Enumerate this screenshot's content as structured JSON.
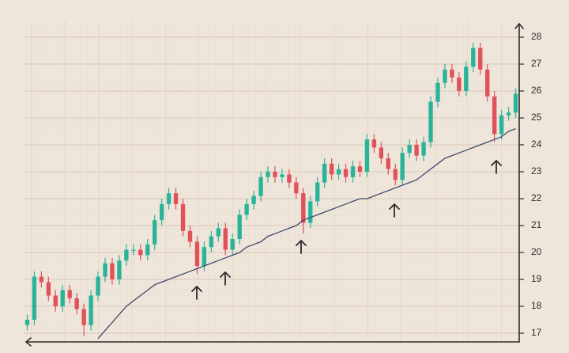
{
  "chart_data": {
    "type": "candlestick",
    "categories": [
      null,
      null,
      null,
      null,
      null,
      null,
      null,
      null,
      null,
      null,
      null,
      null,
      null,
      null,
      null,
      null,
      null,
      null,
      null,
      null,
      null,
      null,
      null,
      null,
      null,
      null,
      null,
      null,
      null,
      null,
      null,
      null,
      null,
      null,
      null,
      null,
      null,
      null,
      null,
      null,
      null,
      null,
      null,
      null,
      null,
      null,
      null,
      null,
      null,
      null,
      null,
      null,
      null,
      null,
      null,
      null,
      null,
      null,
      null,
      null,
      null,
      null,
      null,
      null,
      null,
      null,
      null,
      null,
      null,
      null
    ],
    "open": [
      17.3,
      17.5,
      19.1,
      18.9,
      18.4,
      18.0,
      18.6,
      18.3,
      17.9,
      17.3,
      18.4,
      19.1,
      19.6,
      19.0,
      19.7,
      20.1,
      20.1,
      19.9,
      20.3,
      21.2,
      21.8,
      22.2,
      21.8,
      20.8,
      20.4,
      19.5,
      20.2,
      20.6,
      20.9,
      20.1,
      20.5,
      21.4,
      21.8,
      22.1,
      22.8,
      23.0,
      22.8,
      22.9,
      22.6,
      22.2,
      21.1,
      21.9,
      22.6,
      23.3,
      22.9,
      23.1,
      22.8,
      23.2,
      23.0,
      24.2,
      23.9,
      23.5,
      23.1,
      22.7,
      23.7,
      24.0,
      23.6,
      24.1,
      25.6,
      26.3,
      26.8,
      26.5,
      26.0,
      26.9,
      27.6,
      26.8,
      25.8,
      24.4,
      25.1,
      25.2
    ],
    "high": [
      17.7,
      19.3,
      19.3,
      19.1,
      18.6,
      18.8,
      18.8,
      18.5,
      18.1,
      18.6,
      19.3,
      19.8,
      19.8,
      19.9,
      20.3,
      20.3,
      20.3,
      20.5,
      21.4,
      22.0,
      22.4,
      22.4,
      22.0,
      21.0,
      20.6,
      20.4,
      20.8,
      21.1,
      21.1,
      20.7,
      21.6,
      22.0,
      22.3,
      23.0,
      23.2,
      23.2,
      23.1,
      23.1,
      22.8,
      22.4,
      22.1,
      22.8,
      23.5,
      23.5,
      23.3,
      23.3,
      23.4,
      23.4,
      24.4,
      24.4,
      24.1,
      23.7,
      23.3,
      23.9,
      24.2,
      24.2,
      24.3,
      25.8,
      26.5,
      27.0,
      27.0,
      26.7,
      27.1,
      27.8,
      27.8,
      27.0,
      26.0,
      25.3,
      25.4,
      26.1
    ],
    "low": [
      17.1,
      17.3,
      18.7,
      18.2,
      17.8,
      17.8,
      18.1,
      17.7,
      16.9,
      17.1,
      18.2,
      18.9,
      18.8,
      18.8,
      19.5,
      19.9,
      19.7,
      19.7,
      20.1,
      21.0,
      21.6,
      21.6,
      20.6,
      20.2,
      19.2,
      19.3,
      20.0,
      20.4,
      19.9,
      19.9,
      20.3,
      21.2,
      21.6,
      21.9,
      22.6,
      22.6,
      22.6,
      22.4,
      22.0,
      20.7,
      20.9,
      21.7,
      22.4,
      22.7,
      22.7,
      22.6,
      22.6,
      22.8,
      22.8,
      23.7,
      23.3,
      22.9,
      22.5,
      22.5,
      23.5,
      23.4,
      23.4,
      23.9,
      25.4,
      26.1,
      26.3,
      25.8,
      25.8,
      26.7,
      26.6,
      25.6,
      24.1,
      24.2,
      24.9,
      25.0
    ],
    "close": [
      17.5,
      19.1,
      18.9,
      18.4,
      18.0,
      18.6,
      18.3,
      17.9,
      17.3,
      18.4,
      19.1,
      19.6,
      19.0,
      19.7,
      20.1,
      20.1,
      19.9,
      20.3,
      21.2,
      21.8,
      22.2,
      21.8,
      20.8,
      20.4,
      19.5,
      20.2,
      20.6,
      20.9,
      20.1,
      20.5,
      21.4,
      21.8,
      22.1,
      22.8,
      23.0,
      22.8,
      22.9,
      22.6,
      22.2,
      21.1,
      21.9,
      22.6,
      23.3,
      22.9,
      23.1,
      22.8,
      23.2,
      23.0,
      24.2,
      23.9,
      23.5,
      23.1,
      22.7,
      23.7,
      24.0,
      23.6,
      24.1,
      25.6,
      26.3,
      26.8,
      26.5,
      26.0,
      26.9,
      27.6,
      26.8,
      25.8,
      24.4,
      25.1,
      25.2,
      25.9
    ],
    "up_color": "#2bb39a",
    "down_color": "#e0525a",
    "overlay": {
      "type": "line",
      "color": "#3d4a6b",
      "values": [
        null,
        null,
        null,
        null,
        null,
        null,
        null,
        null,
        null,
        null,
        16.8,
        17.1,
        17.4,
        17.7,
        18.0,
        18.2,
        18.4,
        18.6,
        18.8,
        18.9,
        19.0,
        19.1,
        19.2,
        19.3,
        19.4,
        19.5,
        19.6,
        19.7,
        19.8,
        19.9,
        20.0,
        20.2,
        20.3,
        20.4,
        20.6,
        20.7,
        20.8,
        20.9,
        21.0,
        21.2,
        21.3,
        21.4,
        21.5,
        21.6,
        21.7,
        21.8,
        21.9,
        22.0,
        22.0,
        22.1,
        22.2,
        22.3,
        22.4,
        22.5,
        22.6,
        22.7,
        22.9,
        23.1,
        23.3,
        23.5,
        23.6,
        23.7,
        23.8,
        23.9,
        24.0,
        24.1,
        24.2,
        24.3,
        24.5,
        24.6
      ]
    },
    "ylim": [
      16.7,
      28.5
    ],
    "yticks": [
      17,
      18,
      19,
      20,
      21,
      22,
      23,
      24,
      25,
      26,
      27,
      28
    ],
    "grid": true
  }
}
